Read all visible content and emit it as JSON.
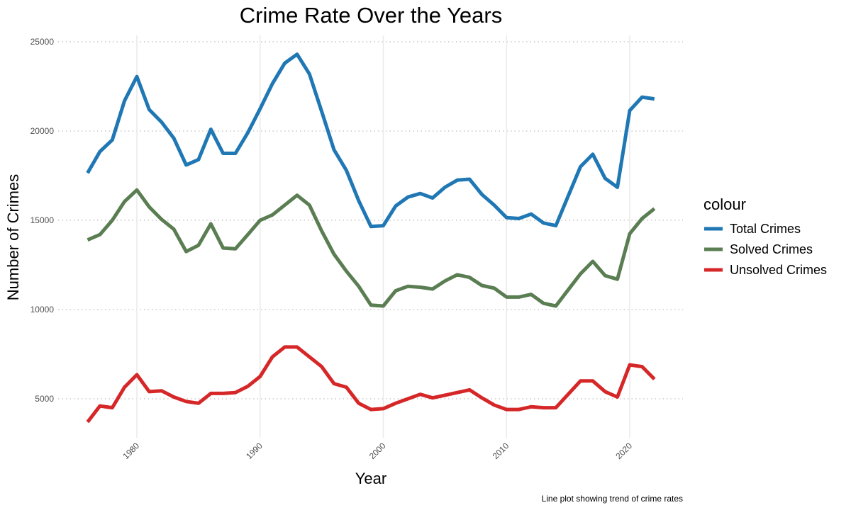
{
  "chart_data": {
    "type": "line",
    "title": "Crime Rate Over the Years",
    "xlabel": "Year",
    "ylabel": "Number of Crimes",
    "caption": "Line plot showing trend of crime rates",
    "xlim": [
      1976,
      2022
    ],
    "ylim": [
      3000,
      25000
    ],
    "x_ticks": [
      1980,
      1990,
      2000,
      2010,
      2020
    ],
    "y_ticks": [
      5000,
      10000,
      15000,
      20000,
      25000
    ],
    "grid": true,
    "legend": {
      "title": "colour",
      "placement": "right"
    },
    "x": [
      1976,
      1977,
      1978,
      1979,
      1980,
      1981,
      1982,
      1983,
      1984,
      1985,
      1986,
      1987,
      1988,
      1989,
      1990,
      1991,
      1992,
      1993,
      1994,
      1995,
      1996,
      1997,
      1998,
      1999,
      2000,
      2001,
      2002,
      2003,
      2004,
      2005,
      2006,
      2007,
      2008,
      2009,
      2010,
      2011,
      2012,
      2013,
      2014,
      2015,
      2016,
      2017,
      2018,
      2019,
      2020,
      2021,
      2022
    ],
    "series": [
      {
        "name": "Total Crimes",
        "color": "#1f77b4",
        "values": [
          17650,
          18850,
          19500,
          21700,
          23050,
          21200,
          20500,
          19600,
          18100,
          18400,
          20100,
          18750,
          18750,
          19900,
          21250,
          22650,
          23800,
          24300,
          23200,
          21100,
          18950,
          17800,
          16100,
          14650,
          14700,
          15800,
          16300,
          16500,
          16250,
          16850,
          17250,
          17300,
          16450,
          15850,
          15150,
          15100,
          15350,
          14850,
          14700,
          16350,
          18000,
          18700,
          17350,
          16850,
          21150,
          21900,
          21800
        ]
      },
      {
        "name": "Solved Crimes",
        "color": "#5a7d52",
        "values": [
          13900,
          14200,
          15000,
          16050,
          16700,
          15750,
          15050,
          14500,
          13250,
          13600,
          14800,
          13450,
          13400,
          14200,
          15000,
          15300,
          15850,
          16400,
          15850,
          14400,
          13100,
          12150,
          11300,
          10250,
          10200,
          11050,
          11300,
          11250,
          11150,
          11600,
          11950,
          11800,
          11350,
          11200,
          10700,
          10700,
          10850,
          10350,
          10200,
          11100,
          12000,
          12700,
          11900,
          11700,
          14250,
          15100,
          15650
        ]
      },
      {
        "name": "Unsolved Crimes",
        "color": "#d62728",
        "values": [
          3700,
          4600,
          4500,
          5650,
          6350,
          5400,
          5450,
          5100,
          4850,
          4750,
          5300,
          5300,
          5350,
          5700,
          6250,
          7350,
          7900,
          7900,
          7350,
          6800,
          5850,
          5650,
          4750,
          4400,
          4450,
          4750,
          5000,
          5250,
          5050,
          5200,
          5350,
          5500,
          5050,
          4650,
          4400,
          4400,
          4550,
          4500,
          4500,
          5250,
          6000,
          6000,
          5400,
          5100,
          6900,
          6800,
          6100
        ]
      }
    ]
  }
}
